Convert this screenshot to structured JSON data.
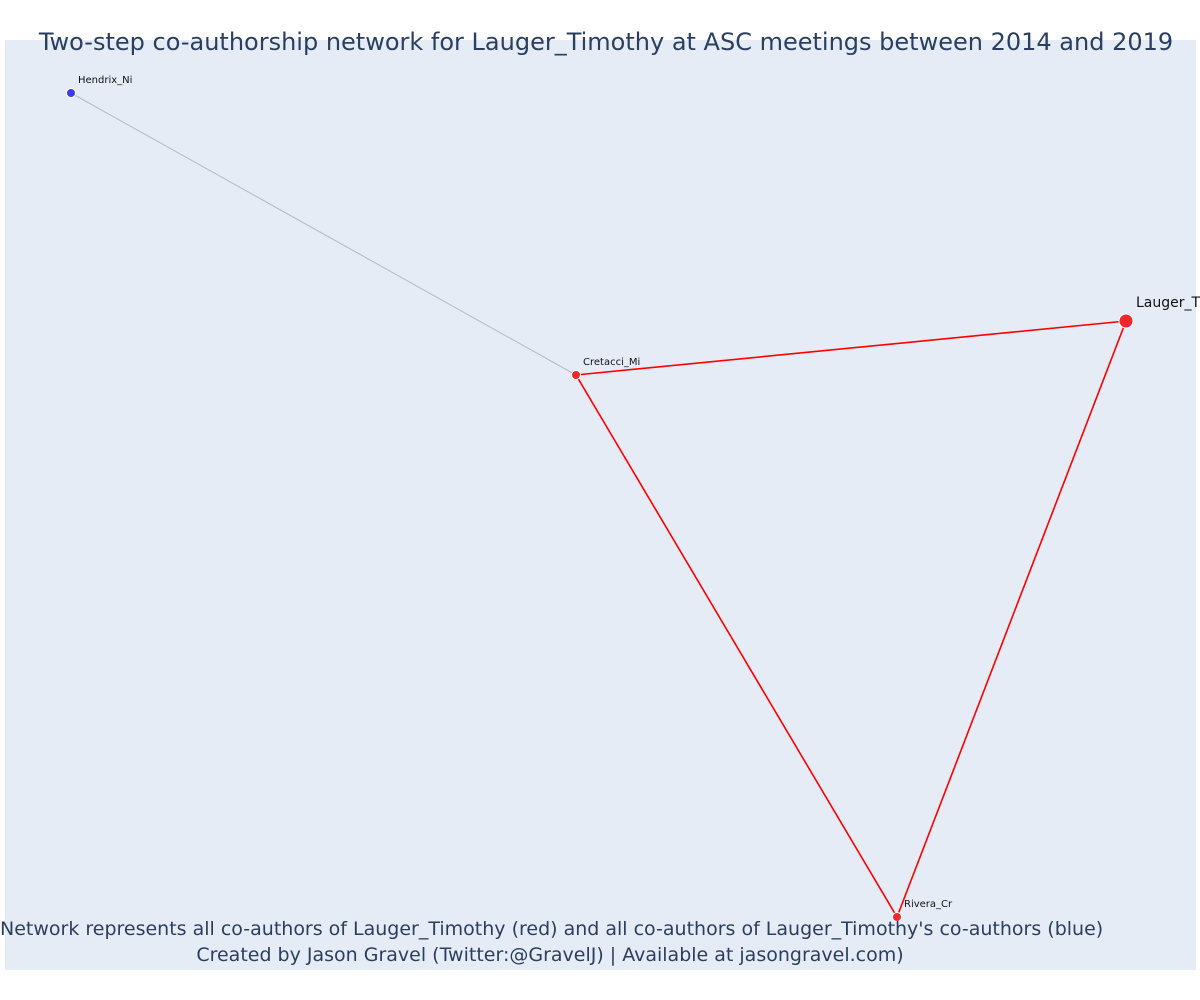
{
  "title": "Two-step co-authorship network for Lauger_Timothy at ASC meetings between 2014 and 2019",
  "caption": {
    "line1": "Network represents all co-authors of Lauger_Timothy (red) and all co-authors of Lauger_Timothy's co-authors (blue)",
    "line2": "Created by Jason Gravel (Twitter:@GravelJ) | Available at jasongravel.com)"
  },
  "colors": {
    "background": "#e5ecf6",
    "coauthor": "#f0282d",
    "second_step": "#3a3af0",
    "red_edge": "#ff0000",
    "grey_edge": "#b8bccb",
    "text": "#2a3f5f"
  },
  "network": {
    "nodes": [
      {
        "id": "Lauger_T",
        "label": "Lauger_T",
        "group": "focal"
      },
      {
        "id": "Cretacci_Mi",
        "label": "Cretacci_Mi",
        "group": "coauthor"
      },
      {
        "id": "Rivera_Cr",
        "label": "Rivera_Cr",
        "group": "coauthor"
      },
      {
        "id": "Hendrix_Ni",
        "label": "Hendrix_Ni",
        "group": "second_step"
      }
    ],
    "edges": [
      {
        "source": "Hendrix_Ni",
        "target": "Cretacci_Mi",
        "type": "second_step"
      },
      {
        "source": "Cretacci_Mi",
        "target": "Lauger_T",
        "type": "coauthor"
      },
      {
        "source": "Cretacci_Mi",
        "target": "Rivera_Cr",
        "type": "coauthor"
      },
      {
        "source": "Lauger_T",
        "target": "Rivera_Cr",
        "type": "coauthor"
      }
    ]
  }
}
